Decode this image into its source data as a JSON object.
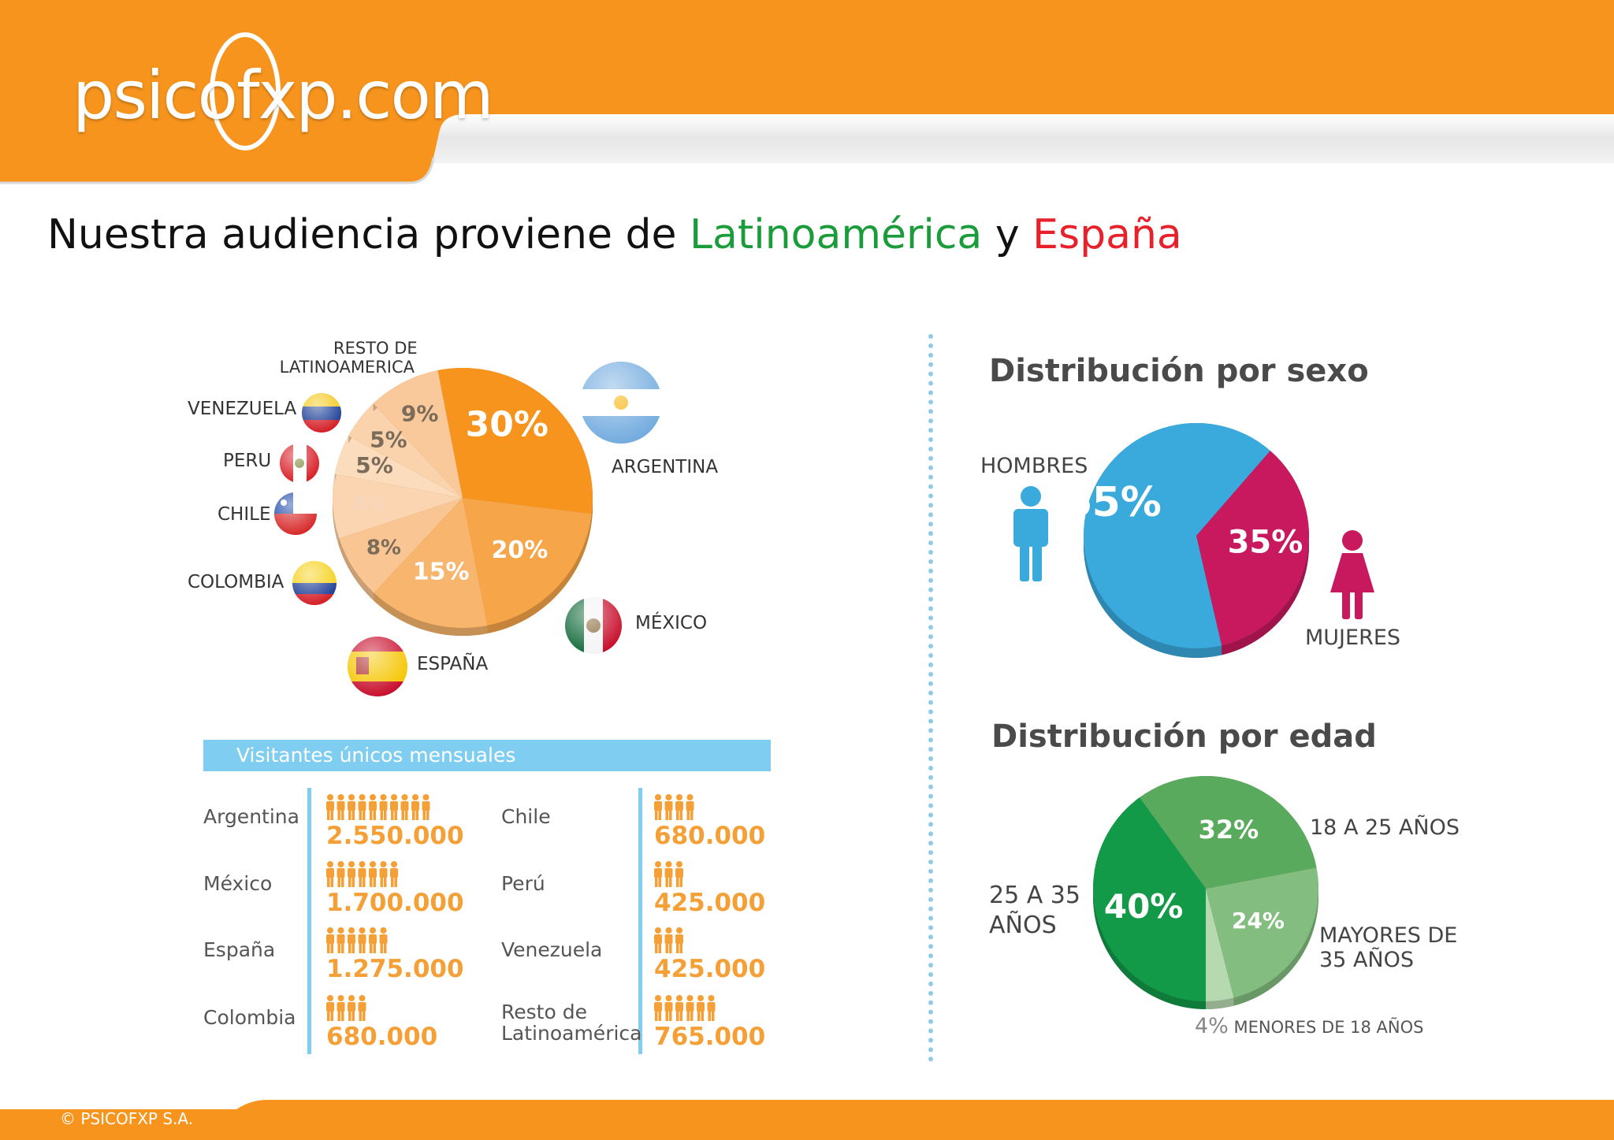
{
  "header": {
    "logo": "psicofxp.com",
    "title_prefix": "Nuestra audiencia proviene de ",
    "title_green": "Latinoamérica",
    "title_mid": " y ",
    "title_red": "España",
    "colors": {
      "orange": "#f7941d",
      "green": "#1a9c3a",
      "red": "#e8202a"
    }
  },
  "chart_data": [
    {
      "type": "pie",
      "title": "",
      "slices": [
        {
          "label": "ARGENTINA",
          "value": 30,
          "value_label": "30%",
          "color": "#f7941d"
        },
        {
          "label": "MÉXICO",
          "value": 20,
          "value_label": "20%",
          "color": "#f6a548"
        },
        {
          "label": "ESPAÑA",
          "value": 15,
          "value_label": "15%",
          "color": "#f7b56d"
        },
        {
          "label": "COLOMBIA",
          "value": 8,
          "value_label": "8%",
          "color": "#f9c592"
        },
        {
          "label": "CHILE",
          "value": 8,
          "value_label": "8%",
          "color": "#fbd5b2"
        },
        {
          "label": "PERU",
          "value": 5,
          "value_label": "5%",
          "color": "#fbdcbc"
        },
        {
          "label": "VENEZUELA",
          "value": 5,
          "value_label": "5%",
          "color": "#fad3ad"
        },
        {
          "label": "RESTO DE LATINOAMERICA",
          "value": 9,
          "value_label": "9%",
          "color": "#f9c99b"
        }
      ]
    },
    {
      "type": "pie",
      "title": "Distribución por sexo",
      "slices": [
        {
          "label": "HOMBRES",
          "value": 65,
          "value_label": "65%",
          "color": "#3aa9dc"
        },
        {
          "label": "MUJERES",
          "value": 35,
          "value_label": "35%",
          "color": "#c8185e"
        }
      ]
    },
    {
      "type": "pie",
      "title": "Distribución por edad",
      "slices": [
        {
          "label": "18 A 25 AÑOS",
          "value": 32,
          "value_label": "32%",
          "color": "#5aaa5e"
        },
        {
          "label": "MAYORES DE 35 AÑOS",
          "value": 24,
          "value_label": "24%",
          "color": "#83bd7f"
        },
        {
          "label": "MENORES DE 18 AÑOS",
          "value": 4,
          "value_label": "4%",
          "color": "#b7d9b0"
        },
        {
          "label": "25 A 35 AÑOS",
          "value": 40,
          "value_label": "40%",
          "color": "#139a48"
        }
      ]
    },
    {
      "type": "table",
      "title": "Visitantes únicos mensuales",
      "rows": [
        {
          "country": "Argentina",
          "value": "2.550.000",
          "people": 10
        },
        {
          "country": "México",
          "value": "1.700.000",
          "people": 7
        },
        {
          "country": "España",
          "value": "1.275.000",
          "people": 6
        },
        {
          "country": "Colombia",
          "value": "680.000",
          "people": 4
        },
        {
          "country": "Chile",
          "value": "680.000",
          "people": 4
        },
        {
          "country": "Perú",
          "value": "425.000",
          "people": 3
        },
        {
          "country": "Venezuela",
          "value": "425.000",
          "people": 3
        },
        {
          "country": "Resto de Latinoamérica",
          "value": "765.000",
          "people": 6
        }
      ]
    }
  ],
  "labels": {
    "resto_line1": "RESTO DE",
    "resto_line2": "LATINOAMERICA",
    "venezuela": "VENEZUELA",
    "peru": "PERU",
    "chile": "CHILE",
    "colombia": "COLOMBIA",
    "espana": "ESPAÑA",
    "mexico": "MÉXICO",
    "argentina": "ARGENTINA",
    "hombres": "HOMBRES",
    "mujeres": "MUJERES",
    "age_18_25": "18 A 25 AÑOS",
    "age_25_35_line1": "25 A 35",
    "age_25_35_line2": "AÑOS",
    "age_35_line1": "MAYORES DE",
    "age_35_line2": "35 AÑOS",
    "age_lt18_pct": "4%",
    "age_lt18_text": "MENORES DE 18 AÑOS"
  },
  "footer": {
    "copyright": "© PSICOFXP S.A."
  },
  "icons": [
    "globe-icon",
    "flag-icons",
    "male-icon",
    "female-icon",
    "person-icon"
  ]
}
